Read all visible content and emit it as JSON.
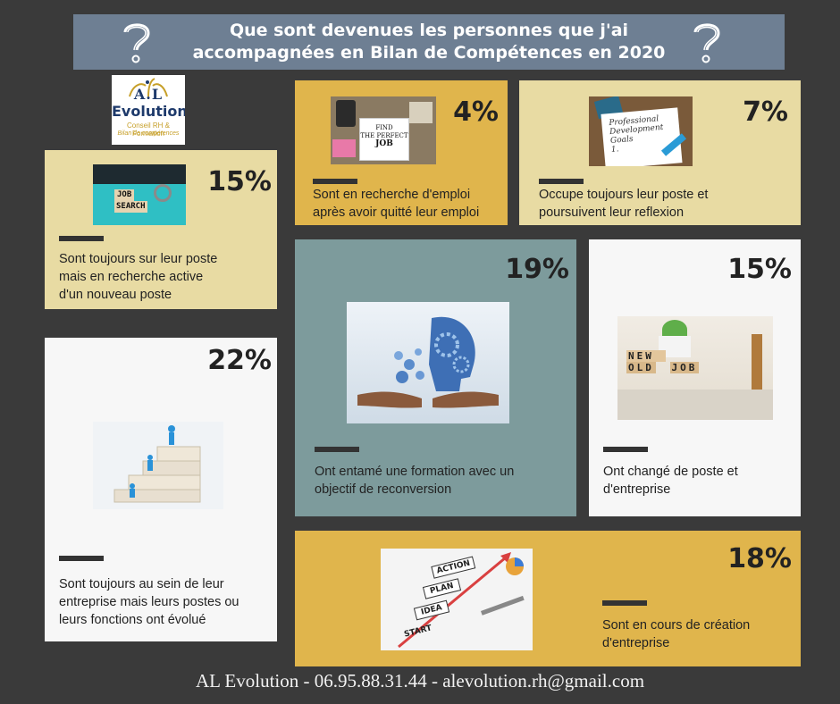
{
  "header": {
    "title_line1": "Que sont devenues les personnes que j'ai",
    "title_line2": "accompagnées en Bilan de Compétences en 2020"
  },
  "logo": {
    "line1": "A.L",
    "line2": "Evolution",
    "line3": "Conseil RH & Formation",
    "line4": "Bilan de compétences"
  },
  "cards": [
    {
      "id": "c4",
      "percent": "4%",
      "desc": [
        "Sont en recherche d'emploi",
        "après avoir quitté leur emploi"
      ],
      "image_text": [
        "FIND",
        "THE PERFECT",
        "JOB"
      ],
      "bg": "#e0b54c"
    },
    {
      "id": "c7",
      "percent": "7%",
      "desc": [
        "Occupe toujours leur poste et",
        "poursuivent leur reflexion"
      ],
      "image_text": [
        "Professional",
        "Development",
        "Goals",
        "1."
      ],
      "bg": "#e8dba3"
    },
    {
      "id": "c15a",
      "percent": "15%",
      "desc": [
        "Sont toujours sur leur poste",
        "mais en recherche active",
        "d'un nouveau poste"
      ],
      "image_text": [
        "JOB",
        "SEARCH"
      ],
      "bg": "#e8dba3"
    },
    {
      "id": "c19",
      "percent": "19%",
      "desc": [
        "Ont entamé une formation avec un",
        "objectif de reconversion"
      ],
      "bg": "#7d9b9c"
    },
    {
      "id": "c15b",
      "percent": "15%",
      "desc": [
        "Ont changé de poste et",
        "d'entreprise"
      ],
      "image_text": [
        "NEW",
        "OLD",
        "JOB"
      ],
      "bg": "#f7f7f7"
    },
    {
      "id": "c22",
      "percent": "22%",
      "desc": [
        "Sont toujours au sein de leur",
        "entreprise mais leurs postes ou",
        "leurs fonctions ont évolué"
      ],
      "bg": "#f7f7f7"
    },
    {
      "id": "c18",
      "percent": "18%",
      "desc": [
        "Sont en cours de création",
        "d'entreprise"
      ],
      "image_text": [
        "ACTION",
        "PLAN",
        "IDEA",
        "START"
      ],
      "bg": "#e0b54c"
    }
  ],
  "footer": "AL Evolution - 06.95.88.31.44 - alevolution.rh@gmail.com",
  "colors": {
    "background": "#3a3a3a",
    "header": "#6e7f93",
    "gold": "#e0b54c",
    "beige": "#e8dba3",
    "teal": "#7d9b9c",
    "white": "#f7f7f7"
  },
  "icons": [
    "question-mark-icon",
    "question-mark-icon"
  ]
}
